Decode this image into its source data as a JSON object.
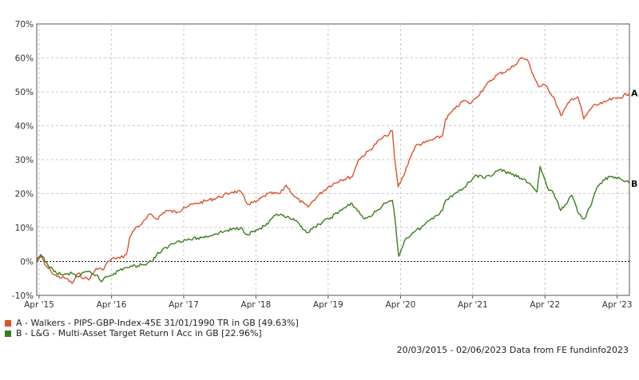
{
  "chart_data": {
    "type": "line",
    "title": "",
    "xlabel": "",
    "ylabel": "",
    "y_ticks": [
      "70%",
      "60%",
      "50%",
      "40%",
      "30%",
      "20%",
      "10%",
      "0%",
      "-10%"
    ],
    "x_ticks": [
      "Apr '15",
      "Apr '16",
      "Apr '17",
      "Apr '18",
      "Apr '19",
      "Apr '20",
      "Apr '21",
      "Apr '22",
      "Apr '23"
    ],
    "ylim": [
      -10,
      70
    ],
    "xlim": [
      "2015-03-20",
      "2023-06-02"
    ],
    "grid": true,
    "series": [
      {
        "name": "A - Walkers - PIPS-GBP-Index-45E 31/01/1990 TR in GB [49.63%]",
        "end_marker": "A",
        "color": "#d9532c",
        "points": [
          [
            "2015-03-20",
            0
          ],
          [
            "2015-04-10",
            1.5
          ],
          [
            "2015-05-01",
            -1
          ],
          [
            "2015-06-01",
            -3
          ],
          [
            "2015-07-01",
            -4.5
          ],
          [
            "2015-08-15",
            -5
          ],
          [
            "2015-09-15",
            -6.5
          ],
          [
            "2015-10-15",
            -3.5
          ],
          [
            "2015-11-15",
            -5
          ],
          [
            "2015-12-15",
            -5
          ],
          [
            "2016-01-15",
            -2
          ],
          [
            "2016-02-15",
            -2.5
          ],
          [
            "2016-03-15",
            0
          ],
          [
            "2016-04-15",
            1
          ],
          [
            "2016-05-15",
            1
          ],
          [
            "2016-06-15",
            2
          ],
          [
            "2016-07-01",
            7
          ],
          [
            "2016-08-01",
            10
          ],
          [
            "2016-09-01",
            11
          ],
          [
            "2016-10-15",
            14
          ],
          [
            "2016-11-15",
            12.5
          ],
          [
            "2017-01-01",
            15
          ],
          [
            "2017-03-01",
            14.5
          ],
          [
            "2017-04-01",
            16
          ],
          [
            "2017-06-01",
            17
          ],
          [
            "2017-08-01",
            18
          ],
          [
            "2017-10-01",
            19
          ],
          [
            "2017-12-01",
            20.5
          ],
          [
            "2018-01-15",
            20.5
          ],
          [
            "2018-02-15",
            17
          ],
          [
            "2018-04-01",
            17.5
          ],
          [
            "2018-06-01",
            20
          ],
          [
            "2018-08-01",
            20
          ],
          [
            "2018-09-01",
            22.5
          ],
          [
            "2018-10-15",
            19
          ],
          [
            "2018-12-20",
            16
          ],
          [
            "2019-02-01",
            19
          ],
          [
            "2019-04-01",
            22
          ],
          [
            "2019-06-01",
            24
          ],
          [
            "2019-08-01",
            25
          ],
          [
            "2019-09-01",
            30
          ],
          [
            "2019-11-01",
            33
          ],
          [
            "2019-12-20",
            36
          ],
          [
            "2020-01-20",
            37
          ],
          [
            "2020-02-20",
            38.5
          ],
          [
            "2020-03-01",
            31
          ],
          [
            "2020-03-20",
            22
          ],
          [
            "2020-04-15",
            25
          ],
          [
            "2020-05-15",
            30
          ],
          [
            "2020-06-15",
            34
          ],
          [
            "2020-08-01",
            35
          ],
          [
            "2020-09-15",
            36
          ],
          [
            "2020-10-30",
            37
          ],
          [
            "2020-11-15",
            42
          ],
          [
            "2021-01-01",
            45
          ],
          [
            "2021-02-15",
            47.5
          ],
          [
            "2021-03-15",
            46.5
          ],
          [
            "2021-04-15",
            48
          ],
          [
            "2021-06-01",
            51.5
          ],
          [
            "2021-08-01",
            55
          ],
          [
            "2021-10-01",
            56.5
          ],
          [
            "2021-11-01",
            58
          ],
          [
            "2021-12-01",
            60
          ],
          [
            "2022-01-01",
            59.5
          ],
          [
            "2022-02-01",
            55
          ],
          [
            "2022-03-01",
            51.5
          ],
          [
            "2022-04-01",
            52
          ],
          [
            "2022-05-15",
            48.5
          ],
          [
            "2022-06-20",
            43
          ],
          [
            "2022-08-15",
            48
          ],
          [
            "2022-09-15",
            48.5
          ],
          [
            "2022-10-15",
            42
          ],
          [
            "2022-12-01",
            46
          ],
          [
            "2023-01-15",
            46.5
          ],
          [
            "2023-02-15",
            47.5
          ],
          [
            "2023-04-01",
            48
          ],
          [
            "2023-06-02",
            49.63
          ]
        ]
      },
      {
        "name": "B - L&G - Multi-Asset Target Return I Acc in GB [22.96%]",
        "end_marker": "B",
        "color": "#3a7d1f",
        "points": [
          [
            "2015-03-20",
            0
          ],
          [
            "2015-04-10",
            2
          ],
          [
            "2015-05-15",
            -1
          ],
          [
            "2015-06-15",
            -3
          ],
          [
            "2015-08-01",
            -4
          ],
          [
            "2015-09-15",
            -3.5
          ],
          [
            "2015-10-15",
            -4.5
          ],
          [
            "2015-12-01",
            -3
          ],
          [
            "2016-01-15",
            -4
          ],
          [
            "2016-02-10",
            -6
          ],
          [
            "2016-03-01",
            -4.5
          ],
          [
            "2016-04-15",
            -3.5
          ],
          [
            "2016-06-01",
            -2
          ],
          [
            "2016-07-15",
            -1.5
          ],
          [
            "2016-09-01",
            -1
          ],
          [
            "2016-10-20",
            0
          ],
          [
            "2016-11-15",
            2
          ],
          [
            "2017-01-15",
            4.5
          ],
          [
            "2017-03-01",
            6
          ],
          [
            "2017-05-01",
            6.5
          ],
          [
            "2017-07-01",
            7
          ],
          [
            "2017-09-01",
            8
          ],
          [
            "2017-11-01",
            9
          ],
          [
            "2018-01-15",
            10
          ],
          [
            "2018-02-15",
            8
          ],
          [
            "2018-04-15",
            9.5
          ],
          [
            "2018-06-01",
            11
          ],
          [
            "2018-07-15",
            14
          ],
          [
            "2018-09-01",
            13
          ],
          [
            "2018-10-15",
            12
          ],
          [
            "2018-12-20",
            8.5
          ],
          [
            "2019-02-15",
            11
          ],
          [
            "2019-04-15",
            13
          ],
          [
            "2019-06-15",
            15.5
          ],
          [
            "2019-08-01",
            17
          ],
          [
            "2019-10-01",
            12.5
          ],
          [
            "2019-11-15",
            14
          ],
          [
            "2020-01-01",
            16.5
          ],
          [
            "2020-02-20",
            18
          ],
          [
            "2020-03-05",
            12
          ],
          [
            "2020-03-23",
            1.5
          ],
          [
            "2020-04-20",
            6
          ],
          [
            "2020-06-01",
            8.5
          ],
          [
            "2020-07-15",
            10
          ],
          [
            "2020-09-01",
            12.5
          ],
          [
            "2020-10-30",
            15
          ],
          [
            "2020-11-15",
            18
          ],
          [
            "2021-01-01",
            20
          ],
          [
            "2021-03-01",
            22.5
          ],
          [
            "2021-04-15",
            25.5
          ],
          [
            "2021-06-01",
            24.5
          ],
          [
            "2021-08-15",
            27
          ],
          [
            "2021-10-01",
            26
          ],
          [
            "2021-12-01",
            24.5
          ],
          [
            "2022-01-15",
            23
          ],
          [
            "2022-02-20",
            20.5
          ],
          [
            "2022-03-08",
            28
          ],
          [
            "2022-04-15",
            21.5
          ],
          [
            "2022-05-15",
            20
          ],
          [
            "2022-06-20",
            15
          ],
          [
            "2022-08-15",
            19.5
          ],
          [
            "2022-09-20",
            14
          ],
          [
            "2022-10-15",
            12.5
          ],
          [
            "2022-11-15",
            16
          ],
          [
            "2022-12-15",
            21
          ],
          [
            "2023-01-20",
            24
          ],
          [
            "2023-03-01",
            25
          ],
          [
            "2023-04-15",
            24.5
          ],
          [
            "2023-06-02",
            22.96
          ]
        ]
      }
    ],
    "footer": "20/03/2015 - 02/06/2023 Data from FE fundinfo2023"
  }
}
